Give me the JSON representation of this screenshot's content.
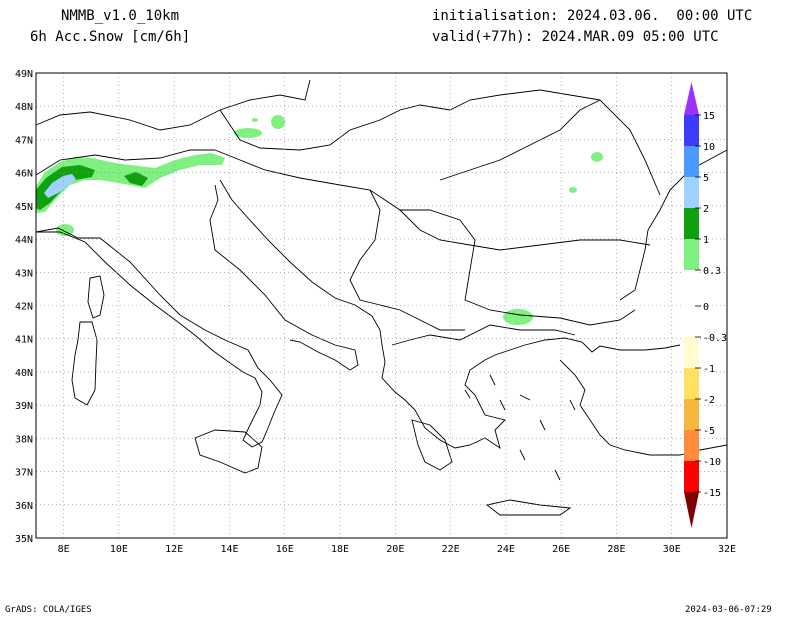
{
  "header": {
    "model": "NMMB_v1.0_10km",
    "variable": "6h Acc.Snow [cm/6h]",
    "init": "initialisation: 2024.03.06.  00:00 UTC",
    "valid": "valid(+77h): 2024.MAR.09 05:00 UTC"
  },
  "map": {
    "lon_range": [
      7,
      32
    ],
    "lat_range": [
      35,
      49
    ],
    "lon_ticks": [
      "8E",
      "10E",
      "12E",
      "14E",
      "16E",
      "18E",
      "20E",
      "22E",
      "24E",
      "26E",
      "28E",
      "30E",
      "32E"
    ],
    "lat_ticks": [
      "49N",
      "48N",
      "47N",
      "46N",
      "45N",
      "44N",
      "43N",
      "42N",
      "41N",
      "40N",
      "39N",
      "38N",
      "37N",
      "36N",
      "35N"
    ],
    "grid": true
  },
  "legend": {
    "labels": [
      "15",
      "10",
      "5",
      "2",
      "1",
      "0.3",
      "0",
      "-0.3",
      "-1",
      "-2",
      "-5",
      "-10",
      "-15"
    ],
    "colors": {
      "p15": "#9b30ff",
      "p10": "#3c3cff",
      "p5": "#4a9bff",
      "p2": "#a0d2ff",
      "p1": "#10a010",
      "p03": "#80f080",
      "zero": "#ffffff",
      "n03": "#fffcd0",
      "n1": "#ffe060",
      "n2": "#f5b83c",
      "n5": "#ff8c3c",
      "n10": "#ff0000",
      "n15": "#cc0000",
      "nmax": "#800000"
    }
  },
  "footer": {
    "left": "GrADS: COLA/IGES",
    "right": "2024-03-06-07:29"
  }
}
